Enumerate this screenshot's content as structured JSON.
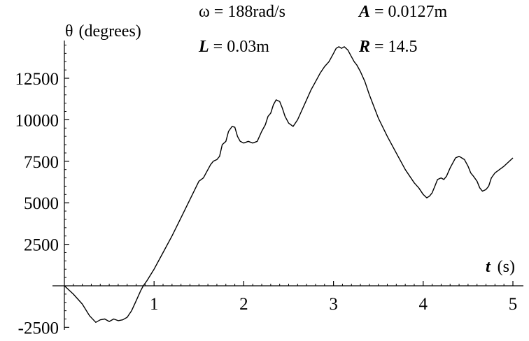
{
  "chart_data": {
    "type": "line",
    "title": "",
    "xlabel": {
      "symbol": "t",
      "unit": "(s)"
    },
    "ylabel": {
      "symbol": "θ",
      "unit": "(degrees)"
    },
    "xlim": [
      0,
      5
    ],
    "ylim": [
      -2500,
      15000
    ],
    "x_ticks": [
      1,
      2,
      3,
      4,
      5
    ],
    "y_ticks": [
      -2500,
      2500,
      5000,
      7500,
      10000,
      12500
    ],
    "x_tick_labels": [
      "1",
      "2",
      "3",
      "4",
      "5"
    ],
    "y_tick_labels": [
      "-2500",
      "2500",
      "5000",
      "7500",
      "10000",
      "12500"
    ],
    "grid": false,
    "legend": "none",
    "line_color": "#000000",
    "parameters": [
      {
        "symbol": "ω",
        "value": " = 188rad/s"
      },
      {
        "symbol": "A",
        "value": " = 0.0127m"
      },
      {
        "symbol": "L",
        "value": " = 0.03m"
      },
      {
        "symbol": "R",
        "value": " = 14.5"
      }
    ],
    "series": [
      {
        "x": [
          0,
          0.1,
          0.2,
          0.28,
          0.35,
          0.4,
          0.45,
          0.5,
          0.55,
          0.6,
          0.65,
          0.7,
          0.75,
          0.8,
          0.85,
          0.88,
          0.92,
          1.0,
          1.1,
          1.2,
          1.3,
          1.4,
          1.5,
          1.55,
          1.6,
          1.63,
          1.66,
          1.7,
          1.73,
          1.76,
          1.8,
          1.83,
          1.87,
          1.9,
          1.93,
          1.96,
          2.0,
          2.05,
          2.1,
          2.15,
          2.2,
          2.24,
          2.27,
          2.3,
          2.33,
          2.36,
          2.4,
          2.43,
          2.46,
          2.5,
          2.55,
          2.6,
          2.65,
          2.7,
          2.75,
          2.8,
          2.85,
          2.9,
          2.95,
          3.0,
          3.03,
          3.06,
          3.09,
          3.12,
          3.16,
          3.2,
          3.23,
          3.26,
          3.3,
          3.35,
          3.4,
          3.45,
          3.5,
          3.6,
          3.7,
          3.8,
          3.9,
          3.95,
          4.0,
          4.04,
          4.07,
          4.1,
          4.13,
          4.16,
          4.2,
          4.23,
          4.26,
          4.3,
          4.33,
          4.36,
          4.4,
          4.43,
          4.46,
          4.5,
          4.53,
          4.56,
          4.6,
          4.63,
          4.66,
          4.7,
          4.73,
          4.76,
          4.8,
          4.9,
          5.0
        ],
        "y": [
          0,
          -500,
          -1100,
          -1800,
          -2200,
          -2050,
          -2000,
          -2150,
          -2000,
          -2100,
          -2050,
          -1900,
          -1500,
          -900,
          -300,
          0,
          300,
          1000,
          2000,
          3000,
          4100,
          5200,
          6300,
          6500,
          7000,
          7300,
          7500,
          7600,
          7800,
          8500,
          8700,
          9300,
          9600,
          9550,
          9000,
          8700,
          8600,
          8700,
          8600,
          8700,
          9300,
          9700,
          10200,
          10400,
          10900,
          11200,
          11100,
          10700,
          10200,
          9800,
          9600,
          10000,
          10600,
          11200,
          11800,
          12300,
          12800,
          13200,
          13500,
          14000,
          14300,
          14400,
          14300,
          14400,
          14200,
          13800,
          13500,
          13300,
          12900,
          12300,
          11500,
          10800,
          10100,
          9000,
          8000,
          7000,
          6200,
          5900,
          5500,
          5300,
          5400,
          5600,
          6000,
          6400,
          6500,
          6400,
          6600,
          7100,
          7400,
          7700,
          7800,
          7700,
          7600,
          7200,
          6800,
          6600,
          6300,
          5900,
          5700,
          5800,
          6000,
          6500,
          6800,
          7200,
          7700
        ]
      }
    ]
  }
}
